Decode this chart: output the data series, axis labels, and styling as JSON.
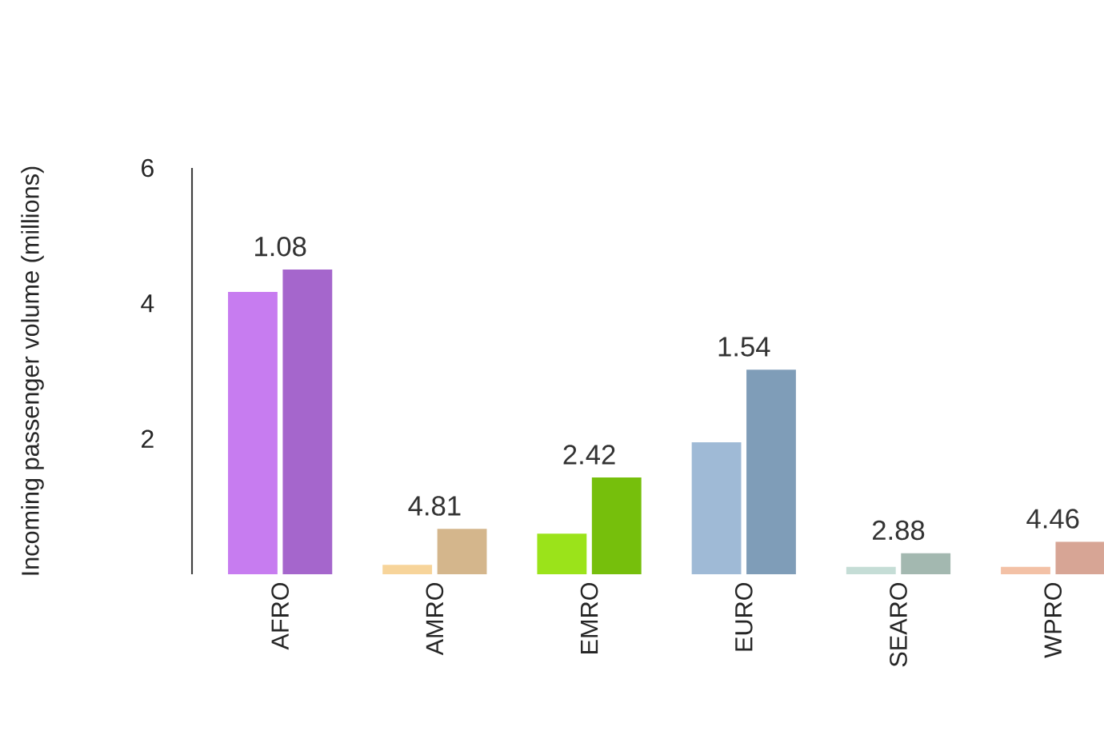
{
  "chart_data": {
    "type": "bar",
    "ylabel": "Incoming passenger volume (millions)",
    "categories": [
      "AFRO",
      "AMRO",
      "EMRO",
      "EURO",
      "SEARO",
      "WPRO"
    ],
    "series": [
      {
        "colors": [
          "#c77cf0",
          "#f7d49a",
          "#9be31a",
          "#9fbad6",
          "#c5ddd6",
          "#f3c1a6"
        ],
        "values": [
          4.17,
          0.14,
          0.6,
          1.95,
          0.11,
          0.11
        ]
      },
      {
        "colors": [
          "#a566cc",
          "#d4b68c",
          "#76bf0c",
          "#7f9db8",
          "#a3b8b0",
          "#d7a595"
        ],
        "values": [
          4.5,
          0.67,
          1.43,
          3.02,
          0.31,
          0.48
        ]
      }
    ],
    "ylim": [
      0,
      6
    ],
    "yticks": [
      2,
      4,
      6
    ],
    "annotations": [
      {
        "text": "1.08",
        "x": "AFRO",
        "y": 4.5
      },
      {
        "text": "4.81",
        "x": "AMRO",
        "y": 0.67
      },
      {
        "text": "2.42",
        "x": "EMRO",
        "y": 1.43
      },
      {
        "text": "1.54",
        "x": "EURO",
        "y": 3.02
      },
      {
        "text": "2.88",
        "x": "SEARO",
        "y": 0.31
      },
      {
        "text": "4.46",
        "x": "WPRO",
        "y": 0.48
      }
    ]
  }
}
